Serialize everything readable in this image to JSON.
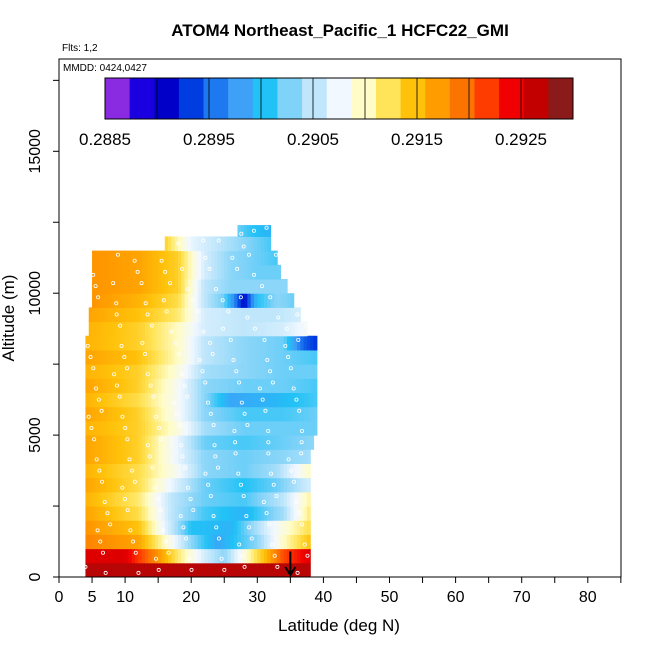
{
  "chart_data": {
    "type": "heatmap",
    "title": "ATOM4 Northeast_Pacific_1 HCFC22_GMI",
    "flights_label": "Flts: 1,2",
    "dates_label": "MMDD: 0424,0427",
    "xlabel": "Latitude (deg N)",
    "ylabel": "Altitude (m)",
    "xlim": [
      0,
      85
    ],
    "ylim": [
      0,
      17500
    ],
    "x_ticks": [
      0,
      5,
      10,
      20,
      30,
      40,
      50,
      60,
      70,
      80
    ],
    "x_tick_labels": [
      "0",
      "5",
      "10",
      "20",
      "30",
      "40",
      "50",
      "60",
      "70",
      "80"
    ],
    "y_ticks": [
      0,
      5000,
      10000,
      15000
    ],
    "y_tick_labels": [
      "0",
      "5000",
      "10000",
      "15000"
    ],
    "colorbar": {
      "min": 0.2885,
      "max": 0.293,
      "tick_values": [
        0.2885,
        0.2895,
        0.2905,
        0.2915,
        0.2925
      ],
      "tick_labels": [
        "0.2885",
        "0.2895",
        "0.2905",
        "0.2915",
        "0.2925"
      ],
      "colors": [
        "#8a2be2",
        "#1a00e0",
        "#0000c8",
        "#003de0",
        "#1e78f0",
        "#3fa0f8",
        "#21c2f6",
        "#7fd2f8",
        "#bfe6fb",
        "#f2f8ff",
        "#fffcc8",
        "#ffe45a",
        "#ffc20a",
        "#ff9c00",
        "#fb7400",
        "#ff3c00",
        "#f00000",
        "#c30000",
        "#8b1a1a"
      ]
    },
    "arrow_marker": {
      "latitude": 35,
      "altitude": 900
    },
    "layers": [
      {
        "alt_min": 0,
        "alt_max": 500,
        "lat_min": 4.0,
        "lat_max": 38.0,
        "lat": [
          4,
          38
        ],
        "val": [
          0.2928,
          0.2928
        ]
      },
      {
        "alt_min": 500,
        "alt_max": 1000,
        "lat_min": 4.0,
        "lat_max": 38.0,
        "lat": [
          4,
          10,
          15,
          18,
          22,
          25,
          28,
          31,
          34,
          38
        ],
        "val": [
          0.2926,
          0.2926,
          0.2918,
          0.2912,
          0.2906,
          0.2903,
          0.2909,
          0.2915,
          0.2922,
          0.2926
        ]
      },
      {
        "alt_min": 1000,
        "alt_max": 1500,
        "lat_min": 4.0,
        "lat_max": 38.0,
        "lat": [
          4,
          12,
          16,
          20,
          24,
          30,
          34,
          38
        ],
        "val": [
          0.2919,
          0.2917,
          0.291,
          0.2903,
          0.2898,
          0.2903,
          0.291,
          0.2915
        ]
      },
      {
        "alt_min": 1500,
        "alt_max": 2000,
        "lat_min": 4.0,
        "lat_max": 38.0,
        "lat": [
          4,
          12,
          16,
          20,
          26,
          32,
          38
        ],
        "val": [
          0.2918,
          0.2915,
          0.2907,
          0.29,
          0.2899,
          0.2907,
          0.2913
        ]
      },
      {
        "alt_min": 2000,
        "alt_max": 2500,
        "lat_min": 4.0,
        "lat_max": 38.0,
        "lat": [
          4,
          12,
          17,
          22,
          28,
          34,
          38
        ],
        "val": [
          0.2917,
          0.2913,
          0.2905,
          0.2901,
          0.2899,
          0.2904,
          0.2912
        ]
      },
      {
        "alt_min": 2500,
        "alt_max": 3000,
        "lat_min": 4.0,
        "lat_max": 38.0,
        "lat": [
          4,
          12,
          17,
          22,
          28,
          34,
          38
        ],
        "val": [
          0.2916,
          0.2912,
          0.2905,
          0.2902,
          0.2901,
          0.2905,
          0.2911
        ]
      },
      {
        "alt_min": 3000,
        "alt_max": 3500,
        "lat_min": 4.0,
        "lat_max": 38.0,
        "lat": [
          4,
          12,
          18,
          22,
          28,
          33,
          38
        ],
        "val": [
          0.2917,
          0.2913,
          0.2906,
          0.2902,
          0.29,
          0.2902,
          0.2906
        ]
      },
      {
        "alt_min": 3500,
        "alt_max": 4000,
        "lat_min": 4.0,
        "lat_max": 38.0,
        "lat": [
          4,
          12,
          18,
          22,
          28,
          33,
          38
        ],
        "val": [
          0.2916,
          0.2913,
          0.2908,
          0.2903,
          0.2902,
          0.2904,
          0.291
        ]
      },
      {
        "alt_min": 4000,
        "alt_max": 4500,
        "lat_min": 4.0,
        "lat_max": 38.0,
        "lat": [
          4,
          12,
          18,
          22,
          28,
          34,
          38
        ],
        "val": [
          0.2917,
          0.2914,
          0.2907,
          0.2903,
          0.2902,
          0.2903,
          0.2904
        ]
      },
      {
        "alt_min": 4500,
        "alt_max": 5000,
        "lat_min": 4.0,
        "lat_max": 38.5,
        "lat": [
          4,
          12,
          18,
          22,
          28,
          34,
          38.5
        ],
        "val": [
          0.2917,
          0.2914,
          0.2907,
          0.2902,
          0.2901,
          0.2902,
          0.2903
        ]
      },
      {
        "alt_min": 5000,
        "alt_max": 5500,
        "lat_min": 4.0,
        "lat_max": 39.0,
        "lat": [
          4,
          12,
          18,
          22,
          28,
          34,
          39
        ],
        "val": [
          0.2916,
          0.2914,
          0.2909,
          0.2904,
          0.2902,
          0.2902,
          0.2902
        ]
      },
      {
        "alt_min": 5500,
        "alt_max": 6000,
        "lat_min": 4.0,
        "lat_max": 39.0,
        "lat": [
          4,
          12,
          18,
          22,
          28,
          34,
          39
        ],
        "val": [
          0.2917,
          0.2914,
          0.2908,
          0.2903,
          0.2901,
          0.2901,
          0.2902
        ]
      },
      {
        "alt_min": 6000,
        "alt_max": 6500,
        "lat_min": 4.0,
        "lat_max": 39.0,
        "lat": [
          4,
          12,
          18,
          22,
          26,
          32,
          39
        ],
        "val": [
          0.2916,
          0.2913,
          0.2908,
          0.2903,
          0.2898,
          0.2899,
          0.2901
        ]
      },
      {
        "alt_min": 6500,
        "alt_max": 7000,
        "lat_min": 4.0,
        "lat_max": 39.0,
        "lat": [
          4,
          12,
          18,
          22,
          28,
          34,
          39
        ],
        "val": [
          0.2917,
          0.2914,
          0.2908,
          0.2903,
          0.2902,
          0.2902,
          0.2901
        ]
      },
      {
        "alt_min": 7000,
        "alt_max": 7500,
        "lat_min": 4.0,
        "lat_max": 39.0,
        "lat": [
          4,
          12,
          18,
          22,
          28,
          34,
          39
        ],
        "val": [
          0.2916,
          0.2914,
          0.2909,
          0.2904,
          0.2903,
          0.2902,
          0.2902
        ]
      },
      {
        "alt_min": 7500,
        "alt_max": 8000,
        "lat_min": 4.0,
        "lat_max": 39.0,
        "lat": [
          4,
          12,
          18,
          22,
          28,
          34,
          39
        ],
        "val": [
          0.2917,
          0.2915,
          0.291,
          0.2905,
          0.2903,
          0.2902,
          0.2901
        ]
      },
      {
        "alt_min": 8000,
        "alt_max": 8500,
        "lat_min": 4.0,
        "lat_max": 39.0,
        "lat": [
          4,
          12,
          18,
          22,
          28,
          34,
          37,
          39
        ],
        "val": [
          0.2916,
          0.2914,
          0.291,
          0.2905,
          0.2903,
          0.2902,
          0.2894,
          0.2892
        ]
      },
      {
        "alt_min": 8500,
        "alt_max": 9000,
        "lat_min": 4.5,
        "lat_max": 37.5,
        "lat": [
          4.5,
          12,
          18,
          22,
          28,
          34,
          37.5
        ],
        "val": [
          0.2916,
          0.2914,
          0.291,
          0.2906,
          0.2905,
          0.2906,
          0.2908
        ]
      },
      {
        "alt_min": 9000,
        "alt_max": 9500,
        "lat_min": 4.5,
        "lat_max": 36.5,
        "lat": [
          4.5,
          12,
          18,
          22,
          28,
          33,
          36.5
        ],
        "val": [
          0.2917,
          0.2915,
          0.2912,
          0.2906,
          0.2905,
          0.2905,
          0.2906
        ]
      },
      {
        "alt_min": 9500,
        "alt_max": 10000,
        "lat_min": 5.0,
        "lat_max": 35.5,
        "lat": [
          5,
          12,
          18,
          22,
          25,
          28,
          30,
          33,
          35.5
        ],
        "val": [
          0.2918,
          0.2916,
          0.2913,
          0.2905,
          0.2902,
          0.289,
          0.29,
          0.2903,
          0.2902
        ]
      },
      {
        "alt_min": 10000,
        "alt_max": 10500,
        "lat_min": 5.0,
        "lat_max": 34.5,
        "lat": [
          5,
          12,
          18,
          22,
          26,
          30,
          34.5
        ],
        "val": [
          0.2918,
          0.2917,
          0.2914,
          0.2905,
          0.2903,
          0.2903,
          0.2903
        ]
      },
      {
        "alt_min": 10500,
        "alt_max": 11000,
        "lat_min": 5.0,
        "lat_max": 33.5,
        "lat": [
          5,
          12,
          18,
          22,
          26,
          30,
          33.5
        ],
        "val": [
          0.2918,
          0.2917,
          0.2914,
          0.2906,
          0.2903,
          0.2902,
          0.2902
        ]
      },
      {
        "alt_min": 11000,
        "alt_max": 11500,
        "lat_min": 5.0,
        "lat_max": 33.0,
        "lat": [
          5,
          12,
          18,
          22,
          26,
          30,
          33
        ],
        "val": [
          0.2918,
          0.2917,
          0.2914,
          0.2906,
          0.2903,
          0.2902,
          0.2901
        ]
      },
      {
        "alt_min": 11500,
        "alt_max": 12000,
        "lat_min": 16.0,
        "lat_max": 32.0,
        "lat": [
          16,
          20,
          24,
          28,
          32
        ],
        "val": [
          0.2914,
          0.2907,
          0.2905,
          0.2903,
          0.2901
        ]
      },
      {
        "alt_min": 12000,
        "alt_max": 12400,
        "lat_min": 27.0,
        "lat_max": 32.0,
        "lat": [
          27,
          29.5,
          32
        ],
        "val": [
          0.2902,
          0.29,
          0.2899
        ]
      }
    ]
  }
}
